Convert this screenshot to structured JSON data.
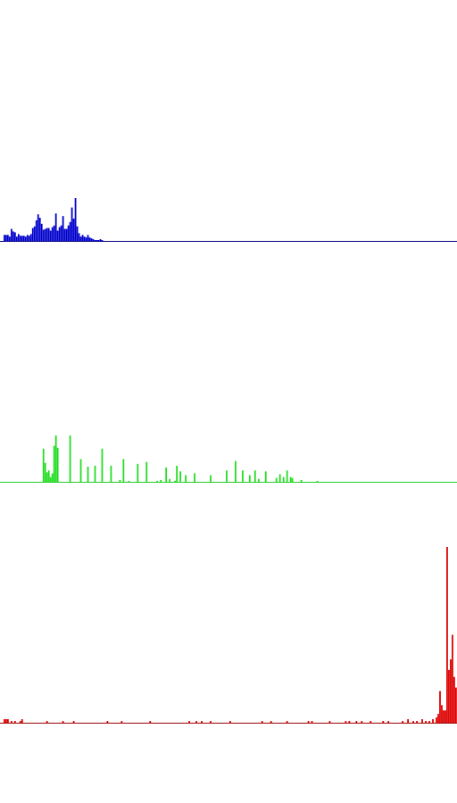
{
  "chart_data": [
    {
      "type": "bar",
      "channel": "blue",
      "color": "#0000cc",
      "axis_color": "#000080",
      "bin_count": 256,
      "xlim": [
        0,
        255
      ],
      "ylim": [
        0,
        1
      ],
      "bars": [
        {
          "x": 1,
          "y": 0.14
        },
        {
          "x": 2,
          "y": 0.14
        },
        {
          "x": 3,
          "y": 0.14
        },
        {
          "x": 4,
          "y": 0.1
        },
        {
          "x": 5,
          "y": 0.28
        },
        {
          "x": 6,
          "y": 0.22
        },
        {
          "x": 7,
          "y": 0.2
        },
        {
          "x": 8,
          "y": 0.1
        },
        {
          "x": 9,
          "y": 0.16
        },
        {
          "x": 10,
          "y": 0.12
        },
        {
          "x": 11,
          "y": 0.12
        },
        {
          "x": 12,
          "y": 0.12
        },
        {
          "x": 13,
          "y": 0.1
        },
        {
          "x": 14,
          "y": 0.14
        },
        {
          "x": 15,
          "y": 0.12
        },
        {
          "x": 16,
          "y": 0.16
        },
        {
          "x": 17,
          "y": 0.3
        },
        {
          "x": 18,
          "y": 0.34
        },
        {
          "x": 19,
          "y": 0.48
        },
        {
          "x": 20,
          "y": 0.62
        },
        {
          "x": 21,
          "y": 0.54
        },
        {
          "x": 22,
          "y": 0.4
        },
        {
          "x": 23,
          "y": 0.26
        },
        {
          "x": 24,
          "y": 0.28
        },
        {
          "x": 25,
          "y": 0.3
        },
        {
          "x": 26,
          "y": 0.3
        },
        {
          "x": 27,
          "y": 0.24
        },
        {
          "x": 28,
          "y": 0.32
        },
        {
          "x": 29,
          "y": 0.36
        },
        {
          "x": 30,
          "y": 0.64
        },
        {
          "x": 31,
          "y": 0.24
        },
        {
          "x": 32,
          "y": 0.32
        },
        {
          "x": 33,
          "y": 0.36
        },
        {
          "x": 34,
          "y": 0.58
        },
        {
          "x": 35,
          "y": 0.28
        },
        {
          "x": 36,
          "y": 0.28
        },
        {
          "x": 37,
          "y": 0.36
        },
        {
          "x": 38,
          "y": 0.44
        },
        {
          "x": 39,
          "y": 0.78
        },
        {
          "x": 40,
          "y": 0.52
        },
        {
          "x": 41,
          "y": 1.0
        },
        {
          "x": 42,
          "y": 0.34
        },
        {
          "x": 43,
          "y": 0.18
        },
        {
          "x": 44,
          "y": 0.1
        },
        {
          "x": 45,
          "y": 0.14
        },
        {
          "x": 46,
          "y": 0.1
        },
        {
          "x": 47,
          "y": 0.08
        },
        {
          "x": 48,
          "y": 0.14
        },
        {
          "x": 49,
          "y": 0.08
        },
        {
          "x": 50,
          "y": 0.06
        },
        {
          "x": 51,
          "y": 0.04
        },
        {
          "x": 52,
          "y": 0.02
        },
        {
          "x": 53,
          "y": 0.02
        },
        {
          "x": 54,
          "y": 0.02
        },
        {
          "x": 55,
          "y": 0.04
        },
        {
          "x": 56,
          "y": 0.02
        }
      ]
    },
    {
      "type": "bar",
      "channel": "green",
      "color": "#22dd22",
      "axis_color": "#22cc22",
      "bin_count": 256,
      "xlim": [
        0,
        255
      ],
      "ylim": [
        0,
        1
      ],
      "bars": [
        {
          "x": 23,
          "y": 0.7
        },
        {
          "x": 24,
          "y": 0.4
        },
        {
          "x": 25,
          "y": 0.2
        },
        {
          "x": 26,
          "y": 0.24
        },
        {
          "x": 27,
          "y": 0.1
        },
        {
          "x": 28,
          "y": 0.18
        },
        {
          "x": 29,
          "y": 0.76
        },
        {
          "x": 30,
          "y": 0.98
        },
        {
          "x": 31,
          "y": 0.72
        },
        {
          "x": 38,
          "y": 0.98
        },
        {
          "x": 44,
          "y": 0.48
        },
        {
          "x": 48,
          "y": 0.32
        },
        {
          "x": 52,
          "y": 0.34
        },
        {
          "x": 56,
          "y": 0.7
        },
        {
          "x": 61,
          "y": 0.34
        },
        {
          "x": 66,
          "y": 0.04
        },
        {
          "x": 68,
          "y": 0.48
        },
        {
          "x": 71,
          "y": 0.02
        },
        {
          "x": 76,
          "y": 0.38
        },
        {
          "x": 81,
          "y": 0.42
        },
        {
          "x": 87,
          "y": 0.02
        },
        {
          "x": 89,
          "y": 0.04
        },
        {
          "x": 92,
          "y": 0.3
        },
        {
          "x": 94,
          "y": 0.06
        },
        {
          "x": 97,
          "y": 0.02
        },
        {
          "x": 98,
          "y": 0.34
        },
        {
          "x": 100,
          "y": 0.22
        },
        {
          "x": 103,
          "y": 0.14
        },
        {
          "x": 108,
          "y": 0.18
        },
        {
          "x": 117,
          "y": 0.14
        },
        {
          "x": 126,
          "y": 0.24
        },
        {
          "x": 131,
          "y": 0.44
        },
        {
          "x": 135,
          "y": 0.24
        },
        {
          "x": 139,
          "y": 0.14
        },
        {
          "x": 142,
          "y": 0.24
        },
        {
          "x": 144,
          "y": 0.06
        },
        {
          "x": 148,
          "y": 0.22
        },
        {
          "x": 154,
          "y": 0.08
        },
        {
          "x": 156,
          "y": 0.16
        },
        {
          "x": 158,
          "y": 0.1
        },
        {
          "x": 160,
          "y": 0.24
        },
        {
          "x": 162,
          "y": 0.1
        },
        {
          "x": 163,
          "y": 0.08
        },
        {
          "x": 168,
          "y": 0.04
        },
        {
          "x": 177,
          "y": 0.02
        }
      ]
    },
    {
      "type": "bar",
      "channel": "red",
      "color": "#dd0000",
      "axis_color": "#990000",
      "bin_count": 256,
      "xlim": [
        0,
        255
      ],
      "ylim": [
        0,
        1
      ],
      "bars": [
        {
          "x": 1,
          "y": 0.02
        },
        {
          "x": 2,
          "y": 0.02
        },
        {
          "x": 3,
          "y": 0.02
        },
        {
          "x": 5,
          "y": 0.01
        },
        {
          "x": 7,
          "y": 0.01
        },
        {
          "x": 10,
          "y": 0.01
        },
        {
          "x": 11,
          "y": 0.02
        },
        {
          "x": 25,
          "y": 0.01
        },
        {
          "x": 34,
          "y": 0.01
        },
        {
          "x": 40,
          "y": 0.01
        },
        {
          "x": 59,
          "y": 0.01
        },
        {
          "x": 67,
          "y": 0.01
        },
        {
          "x": 83,
          "y": 0.01
        },
        {
          "x": 105,
          "y": 0.01
        },
        {
          "x": 109,
          "y": 0.01
        },
        {
          "x": 112,
          "y": 0.01
        },
        {
          "x": 117,
          "y": 0.01
        },
        {
          "x": 128,
          "y": 0.01
        },
        {
          "x": 146,
          "y": 0.01
        },
        {
          "x": 151,
          "y": 0.01
        },
        {
          "x": 160,
          "y": 0.01
        },
        {
          "x": 172,
          "y": 0.01
        },
        {
          "x": 174,
          "y": 0.01
        },
        {
          "x": 184,
          "y": 0.01
        },
        {
          "x": 193,
          "y": 0.01
        },
        {
          "x": 195,
          "y": 0.01
        },
        {
          "x": 199,
          "y": 0.01
        },
        {
          "x": 202,
          "y": 0.01
        },
        {
          "x": 207,
          "y": 0.01
        },
        {
          "x": 214,
          "y": 0.01
        },
        {
          "x": 217,
          "y": 0.01
        },
        {
          "x": 225,
          "y": 0.01
        },
        {
          "x": 228,
          "y": 0.02
        },
        {
          "x": 231,
          "y": 0.01
        },
        {
          "x": 233,
          "y": 0.01
        },
        {
          "x": 236,
          "y": 0.02
        },
        {
          "x": 238,
          "y": 0.01
        },
        {
          "x": 240,
          "y": 0.01
        },
        {
          "x": 242,
          "y": 0.02
        },
        {
          "x": 244,
          "y": 0.03
        },
        {
          "x": 245,
          "y": 0.05
        },
        {
          "x": 246,
          "y": 0.18
        },
        {
          "x": 247,
          "y": 0.1
        },
        {
          "x": 248,
          "y": 0.07
        },
        {
          "x": 249,
          "y": 0.07
        },
        {
          "x": 250,
          "y": 1.0
        },
        {
          "x": 251,
          "y": 0.3
        },
        {
          "x": 252,
          "y": 0.36
        },
        {
          "x": 253,
          "y": 0.5
        },
        {
          "x": 254,
          "y": 0.26
        },
        {
          "x": 255,
          "y": 0.2
        }
      ]
    }
  ]
}
